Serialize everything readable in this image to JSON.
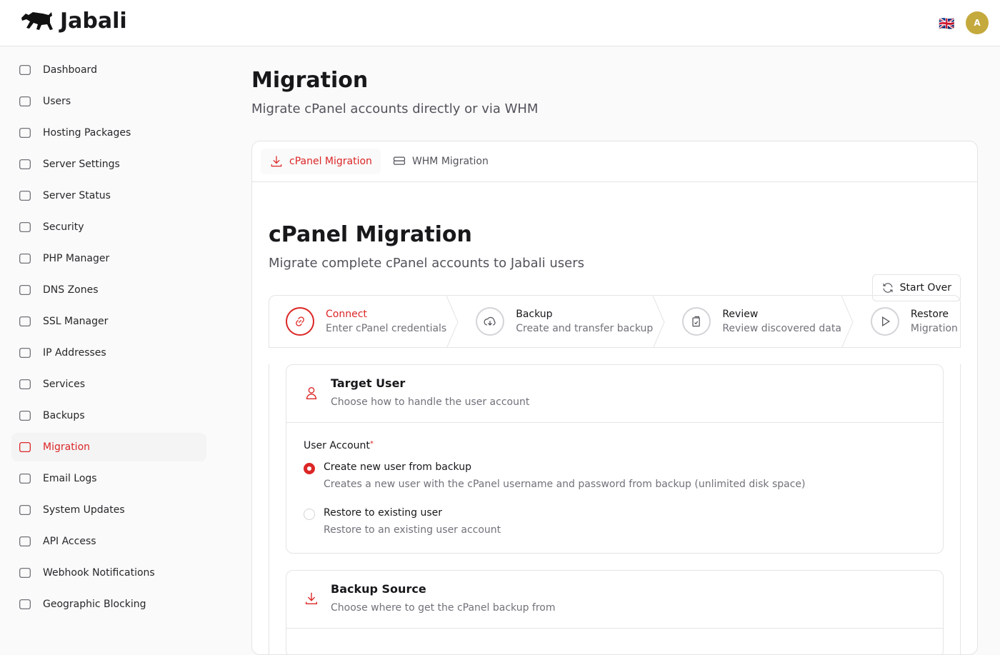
{
  "header": {
    "brand": "Jabali",
    "language": "🇬🇧",
    "avatar_initial": "A"
  },
  "sidebar": {
    "items": [
      {
        "label": "Dashboard",
        "icon": "home-icon"
      },
      {
        "label": "Users",
        "icon": "users-icon"
      },
      {
        "label": "Hosting Packages",
        "icon": "package-icon"
      },
      {
        "label": "Server Settings",
        "icon": "gear-icon"
      },
      {
        "label": "Server Status",
        "icon": "bar-chart-icon"
      },
      {
        "label": "Security",
        "icon": "shield-icon"
      },
      {
        "label": "PHP Manager",
        "icon": "code-icon"
      },
      {
        "label": "DNS Zones",
        "icon": "server-icon"
      },
      {
        "label": "SSL Manager",
        "icon": "shield-check-icon"
      },
      {
        "label": "IP Addresses",
        "icon": "signal-icon"
      },
      {
        "label": "Services",
        "icon": "gear-icon"
      },
      {
        "label": "Backups",
        "icon": "cloud-upload-icon"
      },
      {
        "label": "Migration",
        "icon": "download-icon"
      },
      {
        "label": "Email Logs",
        "icon": "inbox-icon"
      },
      {
        "label": "System Updates",
        "icon": "refresh-icon"
      },
      {
        "label": "API Access",
        "icon": "key-icon"
      },
      {
        "label": "Webhook Notifications",
        "icon": "bell-icon"
      },
      {
        "label": "Geographic Blocking",
        "icon": "globe-icon"
      }
    ],
    "active": "Migration"
  },
  "page": {
    "title": "Migration",
    "subtitle": "Migrate cPanel accounts directly or via WHM"
  },
  "tabs": [
    {
      "label": "cPanel Migration"
    },
    {
      "label": "WHM Migration"
    }
  ],
  "panel": {
    "title": "cPanel Migration",
    "subtitle": "Migrate complete cPanel accounts to Jabali users",
    "start_over": "Start Over"
  },
  "steps": [
    {
      "title": "Connect",
      "desc": "Enter cPanel credentials"
    },
    {
      "title": "Backup",
      "desc": "Create and transfer backup"
    },
    {
      "title": "Review",
      "desc": "Review discovered data"
    },
    {
      "title": "Restore",
      "desc": "Migration"
    }
  ],
  "target": {
    "title": "Target User",
    "desc": "Choose how to handle the user account",
    "field_label": "User Account",
    "required": "*",
    "options": [
      {
        "label": "Create new user from backup",
        "desc": "Creates a new user with the cPanel username and password from backup (unlimited disk space)",
        "selected": true
      },
      {
        "label": "Restore to existing user",
        "desc": "Restore to an existing user account",
        "selected": false
      }
    ]
  },
  "source": {
    "title": "Backup Source",
    "desc": "Choose where to get the cPanel backup from"
  },
  "colors": {
    "accent": "#dc2626"
  }
}
